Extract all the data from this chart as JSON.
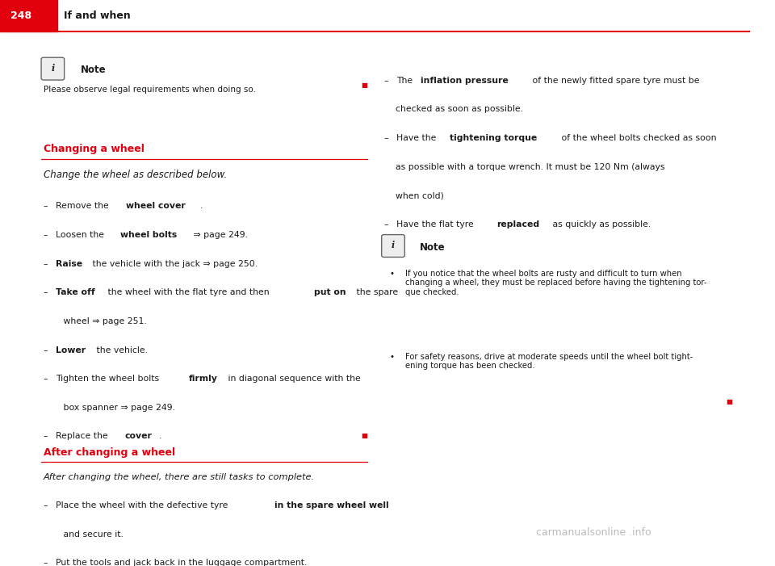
{
  "bg_color": "#ffffff",
  "header_bar_color": "#e2000f",
  "header_text_color": "#ffffff",
  "header_page_num": "248",
  "header_title": "If and when",
  "header_line_color": "#e2000f",
  "section_heading_color": "#e2000f",
  "body_text_color": "#1a1a1a",
  "red_square_color": "#e2000f",
  "watermark_text": "carmanualsonline .info"
}
